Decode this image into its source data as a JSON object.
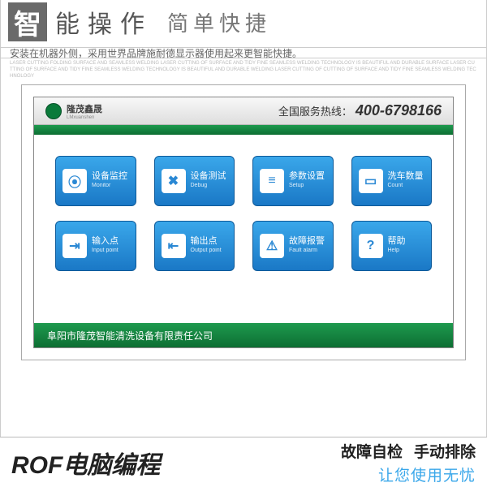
{
  "header": {
    "glyph": "智",
    "title1": "能操作",
    "title2": "简单快捷",
    "subtitle": "安装在机器外侧，采用世界品牌施耐德显示器使用起来更智能快捷。",
    "microtext": "LASER CUTTING FOLDING SURFACE AND SEAMLESS WELDING LASER CUTTING OF SURFACE AND TIDY FINE SEAMLESS WELDING TECHNOLOGY IS BEAUTIFUL AND DURABLE SURFACE LASER CUTTING OF SURFACE AND TIDY FINE SEAMLESS WELDING TECHNOLOGY IS BEAUTIFUL AND DURABLE WELDING LASER CUTTING OF CUTTING OF SURFACE AND TIDY FINE SEAMLESS WELDING TECHNOLOGY"
  },
  "screen": {
    "brand_cn": "隆茂鑫晟",
    "brand_en": "LMxuanshen",
    "hotline_label": "全国服务热线：",
    "hotline_number": "400-6798166",
    "company": "阜阳市隆茂智能清洗设备有限责任公司",
    "buttons": [
      {
        "icon": "⦿",
        "cn": "设备监控",
        "en": "Monitor"
      },
      {
        "icon": "✖",
        "cn": "设备测试",
        "en": "Debug"
      },
      {
        "icon": "≡",
        "cn": "参数设置",
        "en": "Setup"
      },
      {
        "icon": "▭",
        "cn": "洗车数量",
        "en": "Count"
      },
      {
        "icon": "⇥",
        "cn": "输入点",
        "en": "Input point"
      },
      {
        "icon": "⇤",
        "cn": "输出点",
        "en": "Output point"
      },
      {
        "icon": "⚠",
        "cn": "故障报警",
        "en": "Fault alarm"
      },
      {
        "icon": "?",
        "cn": "帮助",
        "en": "Help"
      }
    ],
    "colors": {
      "green1": "#1e9a4e",
      "green2": "#0d6e33",
      "blue1": "#3aa7ea",
      "blue2": "#1a78c6",
      "blue_border": "#0e5a99"
    }
  },
  "footer": {
    "left": "ROF电脑编程",
    "right_a": "故障自检",
    "right_b": "手动排除",
    "right2": "让您使用无忧",
    "accent_color": "#3aa7ea"
  }
}
